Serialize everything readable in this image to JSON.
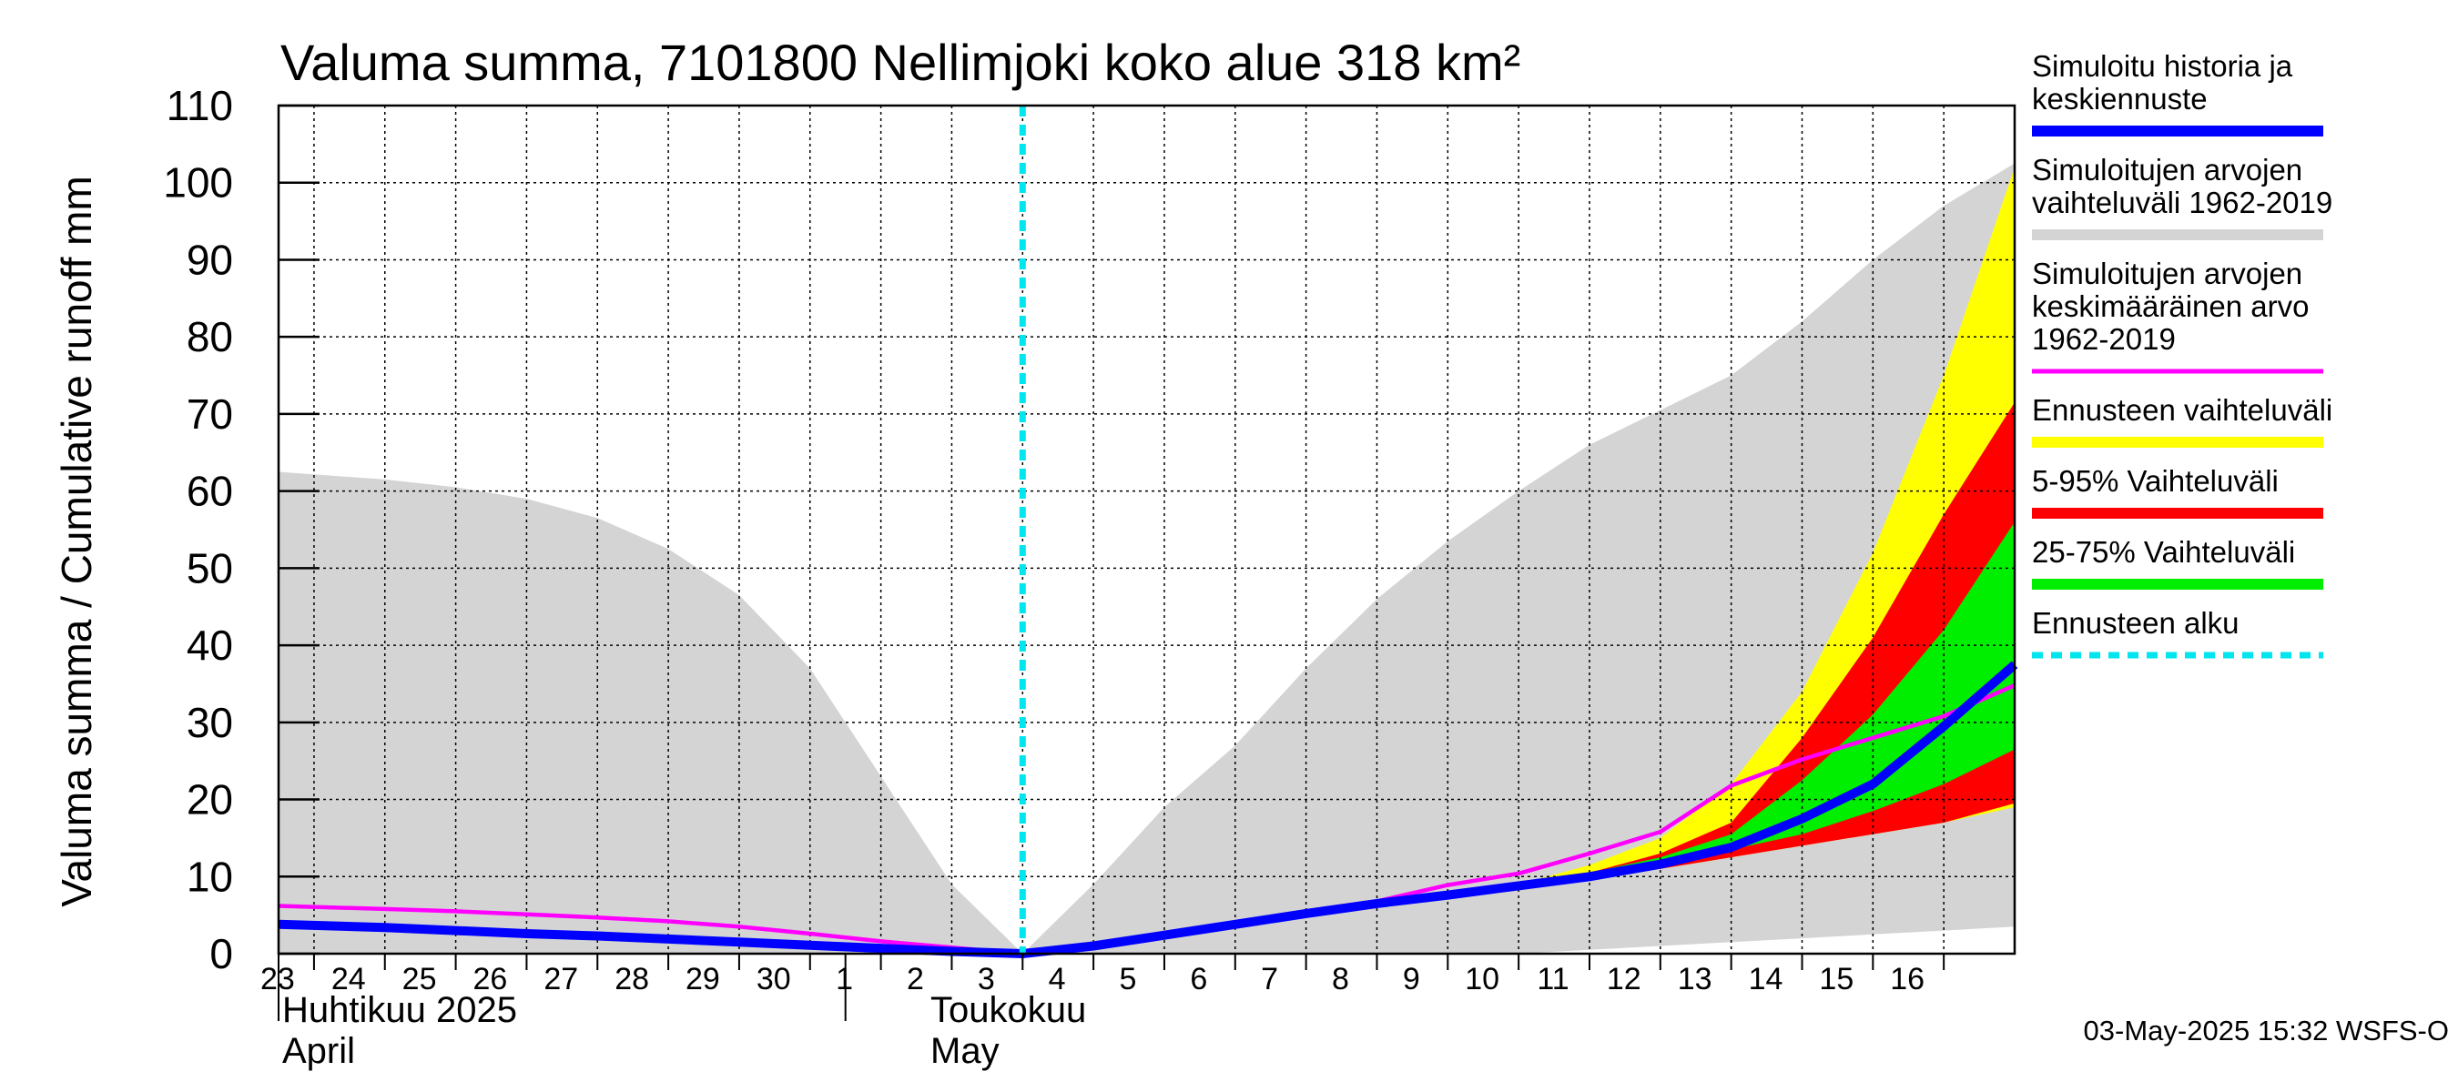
{
  "chart_data": {
    "type": "area",
    "title": "Valuma summa, 7101800 Nellimjoki koko alue 318 km²",
    "ylabel": "Valuma summa / Cumulative runoff    mm",
    "ylim": [
      0,
      110
    ],
    "yticks": [
      0,
      10,
      20,
      30,
      40,
      50,
      60,
      70,
      80,
      90,
      100,
      110
    ],
    "xlim": [
      -10.5,
      14.0
    ],
    "day_ticks": [
      {
        "x": -10,
        "label": "23"
      },
      {
        "x": -9,
        "label": "24"
      },
      {
        "x": -8,
        "label": "25"
      },
      {
        "x": -7,
        "label": "26"
      },
      {
        "x": -6,
        "label": "27"
      },
      {
        "x": -5,
        "label": "28"
      },
      {
        "x": -4,
        "label": "29"
      },
      {
        "x": -3,
        "label": "30"
      },
      {
        "x": -2,
        "label": "1"
      },
      {
        "x": -1,
        "label": "2"
      },
      {
        "x": 0,
        "label": "3"
      },
      {
        "x": 1,
        "label": "4"
      },
      {
        "x": 2,
        "label": "5"
      },
      {
        "x": 3,
        "label": "6"
      },
      {
        "x": 4,
        "label": "7"
      },
      {
        "x": 5,
        "label": "8"
      },
      {
        "x": 6,
        "label": "9"
      },
      {
        "x": 7,
        "label": "10"
      },
      {
        "x": 8,
        "label": "11"
      },
      {
        "x": 9,
        "label": "12"
      },
      {
        "x": 10,
        "label": "13"
      },
      {
        "x": 11,
        "label": "14"
      },
      {
        "x": 12,
        "label": "15"
      },
      {
        "x": 13,
        "label": "16"
      }
    ],
    "month_labels": {
      "april_fi": "Huhtikuu  2025",
      "april_en": "April",
      "may_fi": "Toukokuu",
      "may_en": "May"
    },
    "forecast_start_x": 0,
    "series": [
      {
        "name": "Simuloitujen arvojen vaihteluväli 1962-2019",
        "kind": "band",
        "color": "#d4d4d4",
        "x": [
          -10.5,
          -9,
          -8,
          -7,
          -6,
          -5,
          -4,
          -3,
          -2,
          -1,
          0,
          1,
          2,
          3,
          4,
          5,
          6,
          7,
          8,
          9,
          10,
          11,
          12,
          13,
          14
        ],
        "upper": [
          62.5,
          61.5,
          60.5,
          59,
          56.5,
          52.5,
          46.5,
          37,
          23,
          9,
          0,
          9,
          19,
          27,
          37,
          46,
          53.5,
          60,
          66,
          70.5,
          75,
          82,
          90,
          97,
          102.5
        ],
        "lower": [
          0,
          0,
          0,
          0,
          0,
          0,
          0,
          0,
          0,
          0,
          0,
          0,
          0,
          0,
          0,
          0,
          0,
          0,
          0.5,
          1,
          1.5,
          2,
          2.5,
          3,
          3.5
        ]
      },
      {
        "name": "Ennusteen vaihteluväli",
        "kind": "band",
        "color": "#ffff00",
        "x": [
          7,
          8,
          9,
          10,
          11,
          12,
          13,
          14
        ],
        "upper": [
          9,
          11.5,
          15,
          22,
          34,
          52,
          75,
          102
        ],
        "lower": [
          9,
          10,
          11,
          12.5,
          14,
          15.5,
          17,
          19
        ]
      },
      {
        "name": "5-95% Vaihteluväli",
        "kind": "band",
        "color": "#ff0000",
        "x": [
          7,
          8,
          9,
          10,
          11,
          12,
          13,
          14
        ],
        "upper": [
          9,
          10.5,
          13,
          17,
          28,
          41,
          57,
          71.5
        ],
        "lower": [
          9,
          10,
          11,
          12.5,
          14,
          15.5,
          17,
          19.5
        ]
      },
      {
        "name": "25-75% Vaihteluväli",
        "kind": "band",
        "color": "#00ee00",
        "x": [
          7,
          8,
          9,
          10,
          11,
          12,
          13,
          14
        ],
        "upper": [
          9,
          10.5,
          12.5,
          15.5,
          22.5,
          31,
          42,
          56
        ],
        "lower": [
          9,
          10,
          11.5,
          13.5,
          15.5,
          18.5,
          22,
          26.5
        ]
      },
      {
        "name": "Simuloitujen arvojen keskimääräinen arvo 1962-2019",
        "kind": "line",
        "color": "#ff00ff",
        "x": [
          -10.5,
          -9,
          -8,
          -7,
          -6,
          -5,
          -4,
          -3,
          -2,
          -1,
          0,
          1,
          2,
          3,
          4,
          5,
          6,
          7,
          8,
          9,
          10,
          11,
          12,
          13,
          14
        ],
        "y": [
          6.2,
          5.8,
          5.5,
          5.1,
          4.7,
          4.2,
          3.5,
          2.6,
          1.6,
          0.8,
          0,
          1.3,
          2.6,
          4.0,
          5.5,
          6.8,
          8.9,
          10.4,
          13,
          15.8,
          21.8,
          25.2,
          28,
          30.8,
          34.8
        ]
      },
      {
        "name": "Simuloitu historia ja keskiennuste",
        "kind": "line",
        "color": "#0000ff",
        "x": [
          -10.5,
          -9,
          -8,
          -7,
          -6,
          -5,
          -4,
          -3,
          -2,
          -1,
          0,
          1,
          2,
          3,
          4,
          5,
          6,
          7,
          8,
          9,
          10,
          11,
          12,
          13,
          14
        ],
        "y": [
          3.8,
          3.4,
          3.0,
          2.6,
          2.3,
          1.9,
          1.5,
          1.1,
          0.7,
          0.3,
          0,
          1.0,
          2.4,
          3.8,
          5.2,
          6.5,
          7.6,
          8.8,
          10.0,
          11.6,
          13.8,
          17.5,
          22,
          29.5,
          37.5
        ]
      }
    ],
    "legend": [
      {
        "lines": [
          "Simuloitu historia ja",
          "keskiennuste"
        ],
        "color": "#0000ff",
        "style": "solid"
      },
      {
        "lines": [
          "Simuloitujen arvojen",
          "vaihteluväli 1962-2019"
        ],
        "color": "#d4d4d4",
        "style": "solid"
      },
      {
        "lines": [
          "Simuloitujen arvojen",
          "keskimääräinen arvo",
          "   1962-2019"
        ],
        "color": "#ff00ff",
        "style": "thin"
      },
      {
        "lines": [
          "Ennusteen vaihteluväli"
        ],
        "color": "#ffff00",
        "style": "solid"
      },
      {
        "lines": [
          "5-95% Vaihteluväli"
        ],
        "color": "#ff0000",
        "style": "solid"
      },
      {
        "lines": [
          "25-75% Vaihteluväli"
        ],
        "color": "#00ee00",
        "style": "solid"
      },
      {
        "lines": [
          "Ennusteen alku"
        ],
        "color": "#00e5ee",
        "style": "dashed"
      }
    ],
    "timestamp": "03-May-2025 15:32 WSFS-O"
  }
}
